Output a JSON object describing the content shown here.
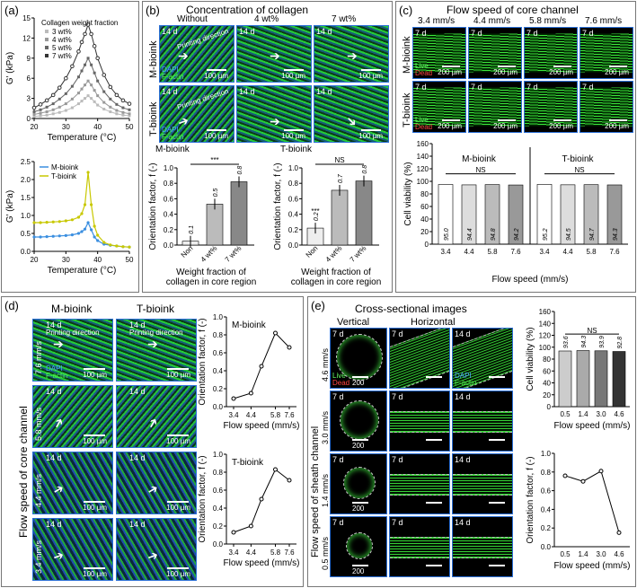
{
  "panels": {
    "a": {
      "label": "(a)",
      "top_chart": {
        "ylabel": "G' (kPa)",
        "xlabel": "Temperature (°C)",
        "legend_title": "Collagen weight fraction",
        "legend": [
          "3 wt%",
          "4 wt%",
          "5 wt%",
          "7 wt%"
        ],
        "yticks": [
          "0",
          "3",
          "6",
          "9",
          "12",
          "15"
        ],
        "xticks": [
          "20",
          "30",
          "40",
          "50"
        ]
      },
      "bottom_chart": {
        "ylabel": "G' (kPa)",
        "xlabel": "Temperature (°C)",
        "legend": [
          "M-bioink",
          "T-bioink"
        ],
        "yticks": [
          "0.0",
          "0.5",
          "1.0",
          "1.5",
          "2.0",
          "2.5"
        ],
        "xticks": [
          "20",
          "30",
          "40",
          "50"
        ]
      }
    },
    "b": {
      "label": "(b)",
      "header": "Concentration of collagen",
      "columns": [
        "Without",
        "4 wt%",
        "7 wt%"
      ],
      "rows": [
        "M-bioink",
        "T-bioink"
      ],
      "tile_day": "14 d",
      "scale": "100 µm",
      "printing_direction": "Printing direction",
      "dapi": "DAPI",
      "factin": "F-actin",
      "charts": [
        {
          "title": "M-bioink",
          "ylabel": "Orientation factor, f (-)",
          "xlabel_lines": [
            "Weight fraction of",
            "collagen in core region"
          ],
          "categories": [
            "Non",
            "4 wt%",
            "7 wt%"
          ],
          "labels": [
            "0.1",
            "0.5",
            "0.8"
          ],
          "sig": "***",
          "yticks": [
            "0.0",
            "0.2",
            "0.4",
            "0.6",
            "0.8",
            "1.0"
          ]
        },
        {
          "title": "T-bioink",
          "ylabel": "Orientation factor, f (-)",
          "xlabel_lines": [
            "Weight fraction of",
            "collagen in core region"
          ],
          "categories": [
            "Non",
            "4 wt%",
            "7 wt%"
          ],
          "labels": [
            "0.2",
            "0.7",
            "0.8"
          ],
          "sig": "NS",
          "sig2": "***",
          "yticks": [
            "0.0",
            "0.2",
            "0.4",
            "0.6",
            "0.8",
            "1.0"
          ]
        }
      ]
    },
    "c": {
      "label": "(c)",
      "header": "Flow speed of core channel",
      "columns": [
        "3.4 mm/s",
        "4.4 mm/s",
        "5.8 mm/s",
        "7.6 mm/s"
      ],
      "rows": [
        "M-bioink",
        "T-bioink"
      ],
      "tile_day": "7 d",
      "scale": "200 µm",
      "live": "Live",
      "dead": "Dead",
      "chart": {
        "ylabel": "Cell viability (%)",
        "xlabel": "Flow speed (mm/s)",
        "groups": [
          "M-bioink",
          "T-bioink"
        ],
        "sig": "NS",
        "categories": [
          "3.4",
          "4.4",
          "5.8",
          "7.6",
          "3.4",
          "4.4",
          "5.8",
          "7.6"
        ],
        "labels": [
          "95.0",
          "94.4",
          "94.8",
          "94.2",
          "95.2",
          "94.5",
          "94.7",
          "94.3"
        ],
        "yticks": [
          "0",
          "20",
          "40",
          "60",
          "80",
          "100",
          "120",
          "140",
          "160"
        ]
      }
    },
    "d": {
      "label": "(d)",
      "columns": [
        "M-bioink",
        "T-bioink"
      ],
      "side_label": "Flow speed of core channel",
      "rows": [
        "7.6 mm/s",
        "5.8 mm/s",
        "4.4 mm/s",
        "3.4 mm/s"
      ],
      "tile_day": "14 d",
      "scale": "100 µm",
      "printing_direction": "Printing direction",
      "dapi": "DAPI",
      "factin": "F-actin",
      "charts": [
        {
          "title": "M-bioink",
          "ylabel": "Orientation factor, f (-)",
          "xlabel": "Flow speed (mm/s)",
          "xticks": [
            "3.4",
            "4.4",
            "5.8",
            "7.6"
          ],
          "yticks": [
            "0.0",
            "0.2",
            "0.4",
            "0.6",
            "0.8",
            "1.0"
          ]
        },
        {
          "title": "T-bioink",
          "ylabel": "Orientation factor, f (-)",
          "xlabel": "Flow speed (mm/s)",
          "xticks": [
            "3.4",
            "4.4",
            "5.8",
            "7.6"
          ],
          "yticks": [
            "0.0",
            "0.2",
            "0.4",
            "0.6",
            "0.8",
            "1.0"
          ]
        }
      ]
    },
    "e": {
      "label": "(e)",
      "header": "Cross-sectional images",
      "columns": [
        "Vertical",
        "Horizontal"
      ],
      "side_label": "Flow speed of sheath channel",
      "rows": [
        "4.6 mm/s",
        "3.0 mm/s",
        "1.4 mm/s",
        "0.5 mm/s"
      ],
      "tile_days": [
        "7 d",
        "14 d"
      ],
      "scale": "200",
      "live": "Live",
      "dead": "Dead",
      "dapi": "DAPI",
      "factin": "F-actin",
      "charts": [
        {
          "ylabel": "Cell viability (%)",
          "xlabel": "Flow speed (mm/s)",
          "categories": [
            "0.5",
            "1.4",
            "3.0",
            "4.6"
          ],
          "labels": [
            "93.6",
            "94.3",
            "93.9",
            "92.8"
          ],
          "sig": "NS",
          "yticks": [
            "0",
            "20",
            "40",
            "60",
            "80",
            "100",
            "120",
            "140",
            "160"
          ]
        },
        {
          "ylabel": "Orientation factor, f (-)",
          "xlabel": "Flow speed (mm/s)",
          "xticks": [
            "0.5",
            "1.4",
            "3.0",
            "4.6"
          ],
          "yticks": [
            "0.0",
            "0.2",
            "0.4",
            "0.6",
            "0.8",
            "1.0"
          ]
        }
      ]
    }
  },
  "chart_data": [
    {
      "type": "line",
      "panel": "a-top",
      "x": [
        20,
        22,
        24,
        26,
        28,
        30,
        32,
        34,
        35,
        36,
        37,
        38,
        39,
        40,
        42,
        44,
        46,
        48,
        50
      ],
      "series": [
        {
          "name": "3 wt%",
          "values": [
            0.3,
            0.4,
            0.5,
            0.7,
            0.9,
            1.2,
            1.6,
            2.2,
            2.6,
            3.0,
            3.4,
            3.0,
            2.5,
            2.0,
            1.4,
            1.0,
            0.7,
            0.5,
            0.4
          ]
        },
        {
          "name": "4 wt%",
          "values": [
            0.6,
            0.8,
            1.0,
            1.3,
            1.7,
            2.2,
            2.9,
            3.8,
            4.4,
            5.0,
            5.6,
            5.0,
            4.2,
            3.4,
            2.4,
            1.7,
            1.2,
            0.9,
            0.7
          ]
        },
        {
          "name": "5 wt%",
          "values": [
            1.0,
            1.3,
            1.7,
            2.2,
            2.9,
            3.7,
            4.8,
            6.2,
            7.1,
            8.0,
            9.0,
            8.0,
            6.8,
            5.6,
            4.0,
            2.9,
            2.1,
            1.6,
            1.3
          ]
        },
        {
          "name": "7 wt%",
          "values": [
            1.6,
            2.1,
            2.7,
            3.5,
            4.6,
            6.0,
            7.8,
            10.0,
            11.4,
            12.6,
            14.0,
            12.6,
            10.8,
            9.0,
            6.5,
            4.7,
            3.5,
            2.7,
            2.2
          ]
        }
      ],
      "xlim": [
        20,
        50
      ],
      "ylim": [
        0,
        15
      ]
    },
    {
      "type": "line",
      "panel": "a-bottom",
      "x": [
        20,
        22,
        24,
        26,
        28,
        30,
        32,
        34,
        35,
        36,
        37,
        38,
        39,
        40,
        42,
        44,
        46,
        48,
        50
      ],
      "series": [
        {
          "name": "M-bioink",
          "values": [
            0.4,
            0.4,
            0.41,
            0.42,
            0.43,
            0.44,
            0.46,
            0.5,
            0.55,
            0.62,
            0.8,
            0.6,
            0.4,
            0.3,
            0.2,
            0.17,
            0.15,
            0.13,
            0.12
          ]
        },
        {
          "name": "T-bioink",
          "values": [
            0.8,
            0.8,
            0.81,
            0.82,
            0.83,
            0.85,
            0.88,
            0.95,
            1.05,
            1.3,
            2.2,
            1.3,
            0.7,
            0.45,
            0.25,
            0.18,
            0.15,
            0.13,
            0.12
          ]
        }
      ],
      "xlim": [
        20,
        50
      ],
      "ylim": [
        0,
        2.5
      ]
    },
    {
      "type": "bar",
      "panel": "b-M",
      "categories": [
        "Non",
        "4 wt%",
        "7 wt%"
      ],
      "values": [
        0.05,
        0.53,
        0.82
      ],
      "ylim": [
        0,
        1.0
      ]
    },
    {
      "type": "bar",
      "panel": "b-T",
      "categories": [
        "Non",
        "4 wt%",
        "7 wt%"
      ],
      "values": [
        0.22,
        0.71,
        0.83
      ],
      "ylim": [
        0,
        1.0
      ]
    },
    {
      "type": "bar",
      "panel": "c",
      "categories": [
        "3.4",
        "4.4",
        "5.8",
        "7.6",
        "3.4",
        "4.4",
        "5.8",
        "7.6"
      ],
      "values": [
        95.0,
        94.4,
        94.8,
        94.2,
        95.2,
        94.5,
        94.7,
        94.3
      ],
      "ylim": [
        0,
        160
      ]
    },
    {
      "type": "line",
      "panel": "d-M",
      "x": [
        3.4,
        4.4,
        5.0,
        5.8,
        6.6
      ],
      "values": [
        0.09,
        0.15,
        0.45,
        0.82,
        0.66
      ],
      "ylim": [
        0,
        1.0
      ]
    },
    {
      "type": "line",
      "panel": "d-T",
      "x": [
        3.4,
        4.4,
        5.0,
        5.8,
        6.6
      ],
      "values": [
        0.13,
        0.2,
        0.5,
        0.83,
        0.71
      ],
      "ylim": [
        0,
        1.0
      ]
    },
    {
      "type": "bar",
      "panel": "e-viability",
      "categories": [
        "0.5",
        "1.4",
        "3.0",
        "4.6"
      ],
      "values": [
        93.6,
        94.3,
        93.9,
        92.8
      ],
      "ylim": [
        0,
        160
      ]
    },
    {
      "type": "line",
      "panel": "e-orientation",
      "x": [
        0.5,
        1.4,
        3.0,
        4.6
      ],
      "values": [
        0.76,
        0.7,
        0.81,
        0.15
      ],
      "ylim": [
        0,
        1.0
      ]
    }
  ],
  "colors": {
    "tile_border": "#2b6fd6",
    "m_bioink": "#3b8fe0",
    "t_bioink": "#c8c800",
    "green": "#33dd33"
  }
}
